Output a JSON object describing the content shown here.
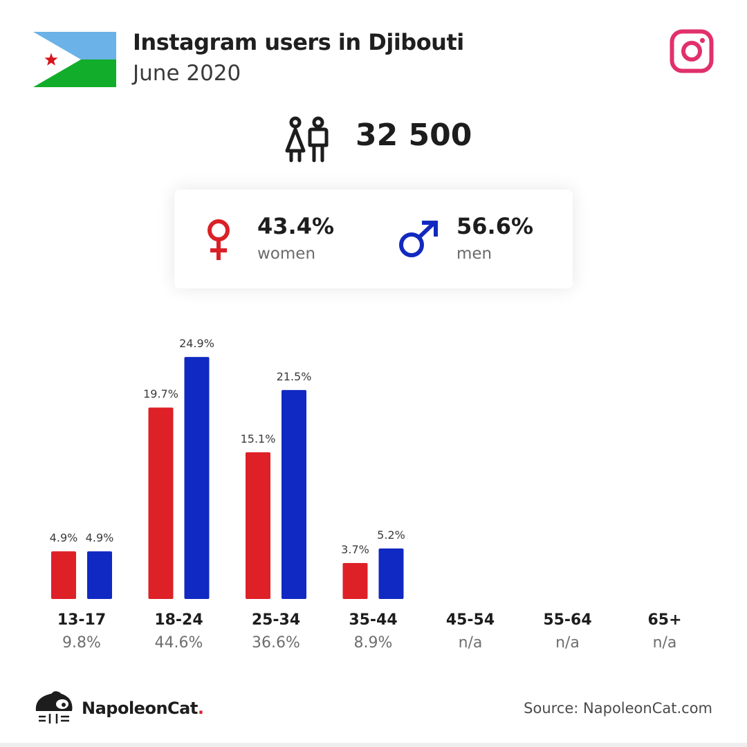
{
  "header": {
    "title": "Instagram users in Djibouti",
    "subtitle": "June 2020"
  },
  "flag": {
    "top_color": "#6ab2e7",
    "bottom_color": "#12ad2b",
    "triangle_color": "#ffffff",
    "star_color": "#d7141a"
  },
  "instagram_icon_color": "#e1306c",
  "total": {
    "value": "32 500",
    "icon": "people-icon"
  },
  "gender": {
    "women": {
      "percent": "43.4%",
      "label": "women",
      "icon": "female-symbol-icon",
      "color": "#d92127"
    },
    "men": {
      "percent": "56.6%",
      "label": "men",
      "icon": "male-symbol-icon",
      "color": "#1229c0"
    }
  },
  "chart_data": {
    "type": "bar",
    "categories": [
      "13-17",
      "18-24",
      "25-34",
      "35-44",
      "45-54",
      "55-64",
      "65+"
    ],
    "category_shares": [
      "9.8%",
      "44.6%",
      "36.6%",
      "8.9%",
      "n/a",
      "n/a",
      "n/a"
    ],
    "series": [
      {
        "values": [
          4.9,
          19.7,
          15.1,
          3.7,
          null,
          null,
          null
        ],
        "labels": [
          "4.9%",
          "19.7%",
          "15.1%",
          "3.7%",
          "",
          "",
          ""
        ],
        "color": "#de2027"
      },
      {
        "values": [
          4.9,
          24.9,
          21.5,
          5.2,
          null,
          null,
          null
        ],
        "labels": [
          "4.9%",
          "24.9%",
          "21.5%",
          "5.2%",
          "",
          "",
          ""
        ],
        "color": "#1029c2"
      }
    ],
    "ylim": [
      0,
      25
    ],
    "grid": false,
    "legend": "none"
  },
  "footer": {
    "brand": "NapoleonCat",
    "brand_dot": ".",
    "source": "Source: NapoleonCat.com"
  }
}
